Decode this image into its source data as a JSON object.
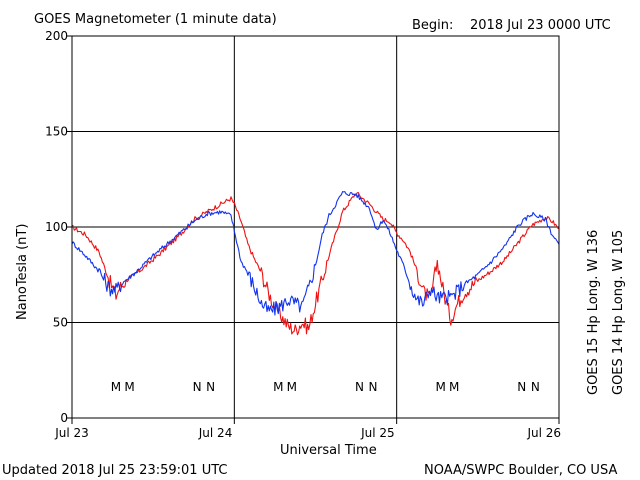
{
  "header": {
    "title": "GOES Magnetometer (1 minute data)",
    "begin_label": "Begin:",
    "begin_value": "2018 Jul 23 0000 UTC"
  },
  "footer": {
    "updated": "Updated 2018 Jul 25 23:59:01 UTC",
    "credit": "NOAA/SWPC Boulder, CO USA"
  },
  "colors": {
    "goes15": "#ee1111",
    "goes14": "#1133ee",
    "grid": "#000000",
    "background": "#ffffff"
  },
  "chart_data": {
    "type": "line",
    "title": "GOES Magnetometer (1 minute data)",
    "xlabel": "Universal Time",
    "ylabel": "NanoTesla (nT)",
    "ylim": [
      0,
      200
    ],
    "yticks": [
      0,
      50,
      100,
      150,
      200
    ],
    "xlim": [
      0,
      72
    ],
    "x_units": "hours since 2018 Jul 23 00:00 UTC",
    "xticks": [
      {
        "hour": 0,
        "label": "Jul 23"
      },
      {
        "hour": 24,
        "label": "Jul 24"
      },
      {
        "hour": 48,
        "label": "Jul 25"
      },
      {
        "hour": 72,
        "label": "Jul 26"
      }
    ],
    "grid": true,
    "legend_position": "right, vertical",
    "series": [
      {
        "name": "GOES 15 Hp Long. W 136",
        "color": "#ee1111",
        "x": [
          0,
          2,
          4,
          5.5,
          6.5,
          7,
          8,
          10,
          13,
          16,
          18,
          20,
          22,
          23.5,
          24,
          25,
          26,
          27,
          28,
          29,
          30,
          31,
          32,
          33,
          34,
          35,
          36,
          38,
          40,
          42,
          44,
          46,
          47,
          48,
          49,
          50,
          51,
          52,
          53,
          54,
          55,
          56,
          57,
          58,
          60,
          62,
          64,
          66,
          68,
          70,
          71,
          72
        ],
        "y": [
          100,
          96,
          87,
          72,
          64,
          68,
          72,
          77,
          86,
          96,
          104,
          108,
          112,
          115,
          112,
          103,
          91,
          83,
          76,
          66,
          58,
          53,
          48,
          46,
          50,
          47,
          60,
          85,
          108,
          118,
          112,
          104,
          103,
          97,
          93,
          87,
          77,
          66,
          62,
          82,
          65,
          52,
          60,
          66,
          72,
          77,
          83,
          92,
          101,
          105,
          103,
          99
        ]
      },
      {
        "name": "GOES 14 Hp Long. W 105",
        "color": "#1133ee",
        "x": [
          0,
          2,
          4,
          5.5,
          6.5,
          7.5,
          9,
          12,
          15,
          18,
          20,
          22,
          23.5,
          24,
          25,
          26,
          27,
          28,
          29,
          30,
          31,
          32,
          33,
          34,
          35,
          36,
          37,
          38,
          40,
          42,
          44,
          45,
          46,
          47,
          48,
          49,
          50,
          51,
          52,
          53,
          54,
          56,
          58,
          60,
          62,
          64,
          66,
          68,
          70,
          71,
          72
        ],
        "y": [
          92,
          85,
          77,
          68,
          67,
          71,
          75,
          85,
          94,
          103,
          107,
          108,
          106,
          98,
          82,
          76,
          68,
          60,
          56,
          57,
          59,
          62,
          60,
          58,
          68,
          80,
          96,
          106,
          118,
          117,
          110,
          98,
          104,
          97,
          88,
          80,
          70,
          62,
          60,
          68,
          63,
          63,
          70,
          75,
          82,
          90,
          101,
          107,
          104,
          96,
          91
        ]
      }
    ],
    "markers": [
      {
        "letter": "M",
        "hour": 6.5,
        "series": "GOES 14 Hp Long. W 105"
      },
      {
        "letter": "M",
        "hour": 8.5,
        "series": "GOES 15 Hp Long. W 136"
      },
      {
        "letter": "N",
        "hour": 18.5,
        "series": "GOES 14 Hp Long. W 105"
      },
      {
        "letter": "N",
        "hour": 20.5,
        "series": "GOES 15 Hp Long. W 136"
      },
      {
        "letter": "M",
        "hour": 30.5,
        "series": "GOES 14 Hp Long. W 105"
      },
      {
        "letter": "M",
        "hour": 32.5,
        "series": "GOES 15 Hp Long. W 136"
      },
      {
        "letter": "N",
        "hour": 42.5,
        "series": "GOES 14 Hp Long. W 105"
      },
      {
        "letter": "N",
        "hour": 44.5,
        "series": "GOES 15 Hp Long. W 136"
      },
      {
        "letter": "M",
        "hour": 54.5,
        "series": "GOES 14 Hp Long. W 105"
      },
      {
        "letter": "M",
        "hour": 56.5,
        "series": "GOES 15 Hp Long. W 136"
      },
      {
        "letter": "N",
        "hour": 66.5,
        "series": "GOES 14 Hp Long. W 105"
      },
      {
        "letter": "N",
        "hour": 68.5,
        "series": "GOES 15 Hp Long. W 136"
      }
    ],
    "legend": [
      {
        "text": "GOES 15 Hp  Long. W 136",
        "color": "#ee1111"
      },
      {
        "text": "GOES 14 Hp  Long. W 105",
        "color": "#1133ee"
      }
    ]
  }
}
